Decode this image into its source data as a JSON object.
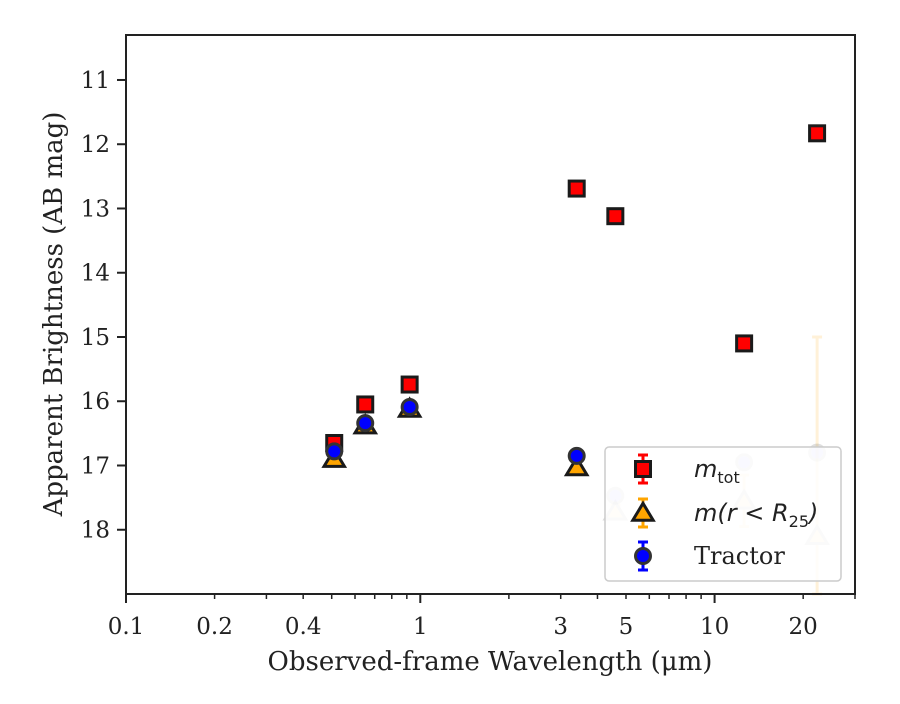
{
  "chart_data": {
    "type": "scatter",
    "xlabel": "Observed-frame Wavelength (μm)",
    "ylabel": "Apparent Brightness (AB mag)",
    "xscale": "log",
    "xlim": [
      0.1,
      30
    ],
    "ylim": [
      19.0,
      10.3
    ],
    "y_inverted": true,
    "x_ticks": [
      0.1,
      0.2,
      0.4,
      1,
      3,
      5,
      10,
      20
    ],
    "x_tick_labels": [
      "0.1",
      "0.2",
      "0.4",
      "1",
      "3",
      "5",
      "10",
      "20"
    ],
    "y_ticks": [
      11,
      12,
      13,
      14,
      15,
      16,
      17,
      18
    ],
    "y_tick_labels": [
      "11",
      "12",
      "13",
      "14",
      "15",
      "16",
      "17",
      "18"
    ],
    "grid": false,
    "legend_position": "lower-right",
    "series": [
      {
        "name": "m_tot",
        "marker": "square",
        "face_color": "#ff0000",
        "edge_color": "#1a1a1a",
        "err_color": "#ff0000",
        "points": [
          {
            "x": 0.51,
            "y": 16.65,
            "yerr": 0.05,
            "faded": false
          },
          {
            "x": 0.65,
            "y": 16.05,
            "yerr": 0.03,
            "faded": false
          },
          {
            "x": 0.92,
            "y": 15.74,
            "yerr": 0.03,
            "faded": false
          },
          {
            "x": 3.4,
            "y": 12.69,
            "yerr": 0.02,
            "faded": false
          },
          {
            "x": 4.6,
            "y": 13.12,
            "yerr": 0.02,
            "faded": false
          },
          {
            "x": 12.6,
            "y": 15.1,
            "yerr": 0.05,
            "faded": false
          },
          {
            "x": 22.3,
            "y": 11.83,
            "yerr": 0.03,
            "faded": false
          }
        ]
      },
      {
        "name": "m(r < R_25)",
        "marker": "triangle",
        "face_color": "#ffa500",
        "edge_color": "#1a1a1a",
        "err_color": "#ffa500",
        "points": [
          {
            "x": 0.51,
            "y": 16.9,
            "yerr": 0.02,
            "faded": false
          },
          {
            "x": 0.65,
            "y": 16.38,
            "yerr": 0.02,
            "faded": false
          },
          {
            "x": 0.92,
            "y": 16.12,
            "yerr": 0.02,
            "faded": false
          },
          {
            "x": 3.4,
            "y": 17.03,
            "yerr": 0.03,
            "faded": false
          },
          {
            "x": 4.6,
            "y": 17.72,
            "yerr": 0.1,
            "faded": true
          },
          {
            "x": 12.6,
            "y": 17.55,
            "yerr": 0.4,
            "faded": true
          },
          {
            "x": 22.3,
            "y": 18.1,
            "yerr": 3.1,
            "faded": true
          }
        ]
      },
      {
        "name": "Tractor",
        "marker": "circle",
        "face_color": "#0000ff",
        "edge_color": "#333333",
        "err_color": "#0000ff",
        "points": [
          {
            "x": 0.51,
            "y": 16.78,
            "yerr": 0.02,
            "faded": false
          },
          {
            "x": 0.65,
            "y": 16.34,
            "yerr": 0.02,
            "faded": false
          },
          {
            "x": 0.92,
            "y": 16.09,
            "yerr": 0.02,
            "faded": false
          },
          {
            "x": 3.4,
            "y": 16.85,
            "yerr": 0.03,
            "faded": false
          },
          {
            "x": 4.6,
            "y": 17.47,
            "yerr": 0.05,
            "faded": true
          },
          {
            "x": 12.6,
            "y": 16.95,
            "yerr": 0.05,
            "faded": true
          },
          {
            "x": 22.3,
            "y": 16.8,
            "yerr": 0.05,
            "faded": true
          }
        ]
      }
    ],
    "legend": [
      {
        "marker": "square",
        "label_main": "m",
        "label_sub": "tot",
        "label_tail": ""
      },
      {
        "marker": "triangle",
        "label_main": "m(r < R",
        "label_sub": "25",
        "label_tail": ")"
      },
      {
        "marker": "circle",
        "label_main": "Tractor",
        "label_sub": "",
        "label_tail": ""
      }
    ]
  }
}
